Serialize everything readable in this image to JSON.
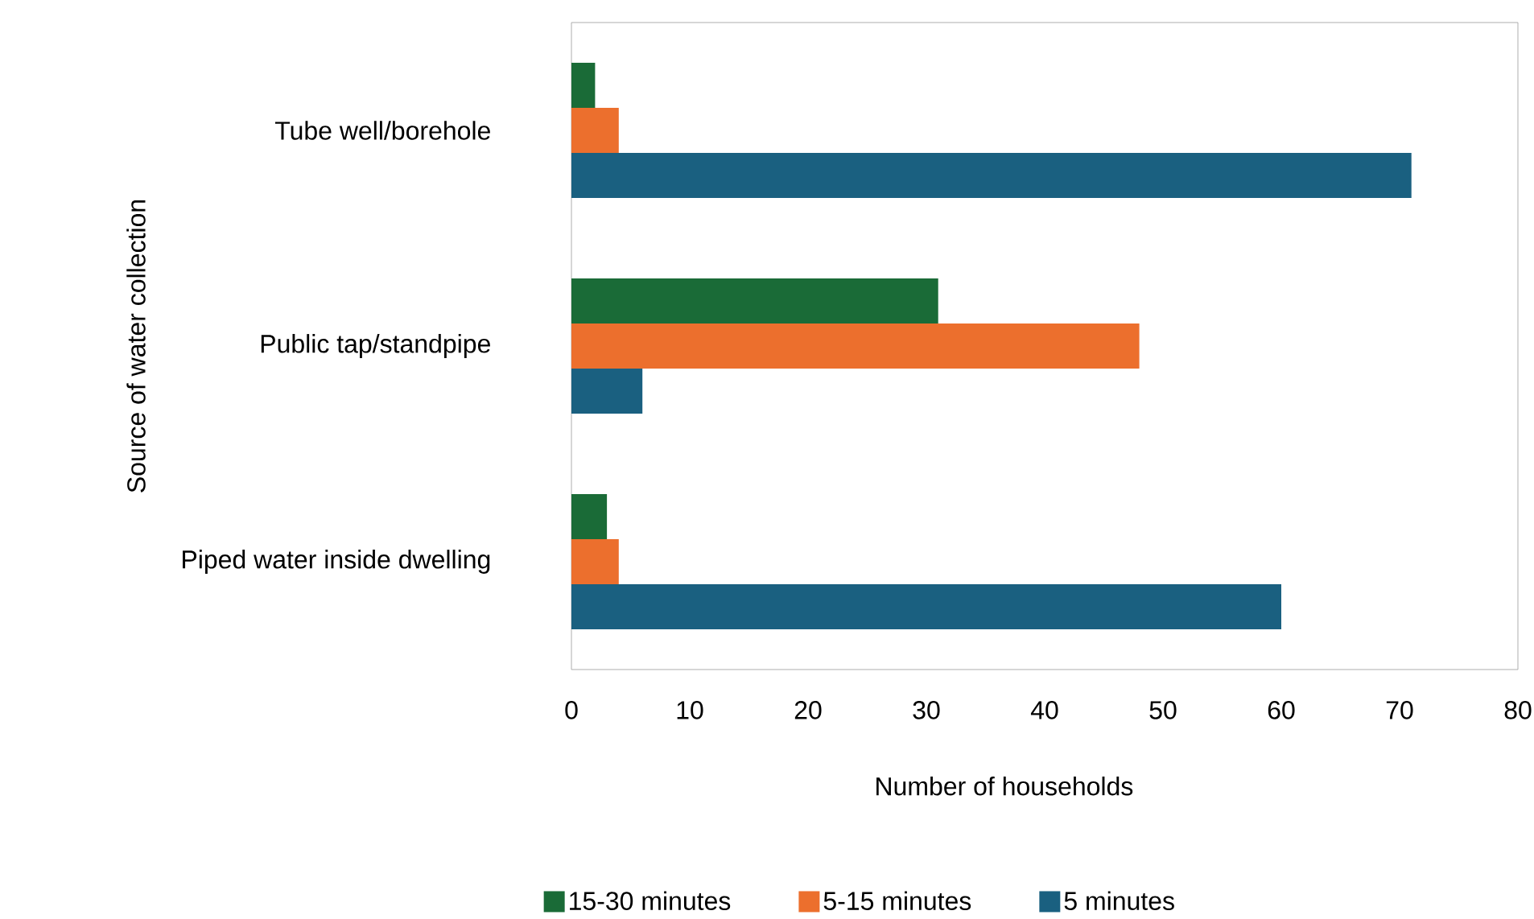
{
  "chart_data": {
    "type": "bar",
    "orientation": "horizontal",
    "categories": [
      "Tube well/borehole",
      "Public tap/standpipe",
      "Piped water inside dwelling"
    ],
    "series": [
      {
        "name": "15-30 minutes",
        "color": "#1a6b37",
        "values": [
          2,
          31,
          3
        ]
      },
      {
        "name": "5-15 minutes",
        "color": "#ec6f2d",
        "values": [
          4,
          48,
          4
        ]
      },
      {
        "name": "5 minutes",
        "color": "#1a6080",
        "values": [
          71,
          6,
          60
        ]
      }
    ],
    "xlabel": "Number of households",
    "ylabel": "Source of water collection",
    "xlim": [
      0,
      80
    ],
    "xticks": [
      0,
      10,
      20,
      30,
      40,
      50,
      60,
      70,
      80
    ],
    "legend": "bottom",
    "grid": false
  }
}
